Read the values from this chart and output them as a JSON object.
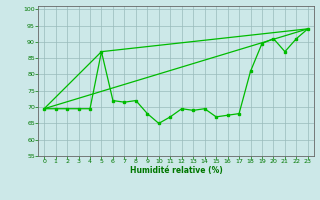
{
  "x": [
    0,
    1,
    2,
    3,
    4,
    5,
    6,
    7,
    8,
    9,
    10,
    11,
    12,
    13,
    14,
    15,
    16,
    17,
    18,
    19,
    20,
    21,
    22,
    23
  ],
  "y_main": [
    69.5,
    69.5,
    69.5,
    69.5,
    69.5,
    87.0,
    72.0,
    71.5,
    72.0,
    68.0,
    65.0,
    67.0,
    69.5,
    69.0,
    69.5,
    67.0,
    67.5,
    68.0,
    81.0,
    89.5,
    91.0,
    87.0,
    91.0,
    94.0
  ],
  "trend1_x": [
    0,
    23
  ],
  "trend1_y": [
    69.5,
    94.0
  ],
  "trend2_x": [
    0,
    5,
    23
  ],
  "trend2_y": [
    69.5,
    87.0,
    94.0
  ],
  "xlabel": "Humidité relative (%)",
  "ylim": [
    55,
    101
  ],
  "xlim": [
    -0.5,
    23.5
  ],
  "yticks": [
    55,
    60,
    65,
    70,
    75,
    80,
    85,
    90,
    95,
    100
  ],
  "xticks": [
    0,
    1,
    2,
    3,
    4,
    5,
    6,
    7,
    8,
    9,
    10,
    11,
    12,
    13,
    14,
    15,
    16,
    17,
    18,
    19,
    20,
    21,
    22,
    23
  ],
  "line_color": "#00bb00",
  "bg_color": "#cce8e8",
  "grid_color": "#99bbbb",
  "font_color": "#007700"
}
